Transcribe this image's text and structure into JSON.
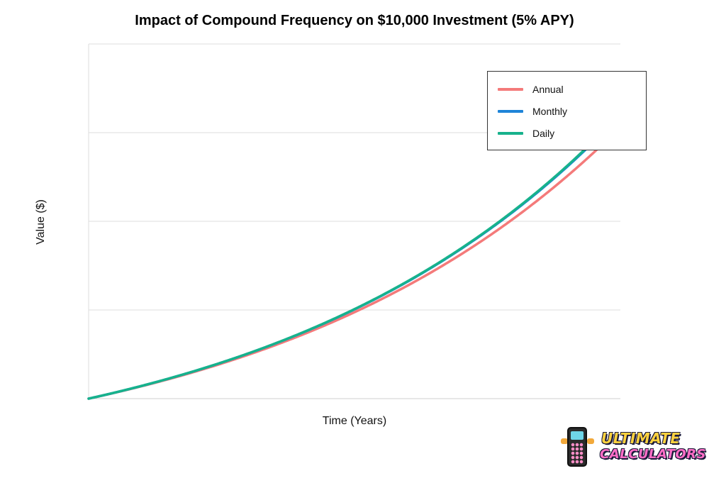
{
  "chart_data": {
    "type": "line",
    "title": "Impact of Compound Frequency on $10,000 Investment (5% APY)",
    "xlabel": "Time (Years)",
    "ylabel": "Value ($)",
    "grid": true,
    "legend_position": "top-right",
    "series": [
      {
        "name": "Annual",
        "color": "#f47a7a",
        "rate": 0.05,
        "periods_per_year": 1
      },
      {
        "name": "Monthly",
        "color": "#1e84d8",
        "rate": 0.05,
        "periods_per_year": 12
      },
      {
        "name": "Daily",
        "color": "#17b28c",
        "rate": 0.05,
        "periods_per_year": 365
      }
    ]
  },
  "branding": {
    "logo_line1": "ULTIMATE",
    "logo_line2": "CALCULATORS"
  }
}
